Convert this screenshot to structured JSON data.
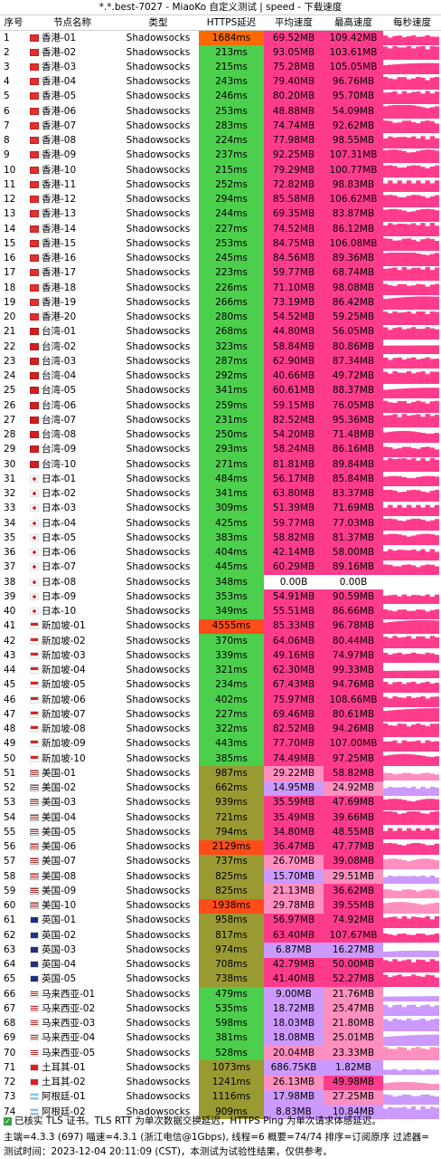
{
  "window_title": "*.*.best-7027 - MiaoKo 自定义测试 | speed - 下载速度",
  "headers": [
    "序号",
    "节点名称",
    "类型",
    "HTTPS延迟",
    "平均速度",
    "最高速度",
    "每秒速度"
  ],
  "rows": [
    [
      "1",
      "hk",
      "香港-01",
      "Shadowsocks",
      "1684ms",
      "69.52MB",
      "109.42MB"
    ],
    [
      "2",
      "hk",
      "香港-02",
      "Shadowsocks",
      "213ms",
      "93.05MB",
      "103.61MB"
    ],
    [
      "3",
      "hk",
      "香港-03",
      "Shadowsocks",
      "215ms",
      "75.28MB",
      "105.05MB"
    ],
    [
      "4",
      "hk",
      "香港-04",
      "Shadowsocks",
      "243ms",
      "79.40MB",
      "96.76MB"
    ],
    [
      "5",
      "hk",
      "香港-05",
      "Shadowsocks",
      "246ms",
      "80.20MB",
      "95.70MB"
    ],
    [
      "6",
      "hk",
      "香港-06",
      "Shadowsocks",
      "253ms",
      "48.88MB",
      "54.09MB"
    ],
    [
      "7",
      "hk",
      "香港-07",
      "Shadowsocks",
      "283ms",
      "74.74MB",
      "92.62MB"
    ],
    [
      "8",
      "hk",
      "香港-08",
      "Shadowsocks",
      "224ms",
      "77.98MB",
      "98.55MB"
    ],
    [
      "9",
      "hk",
      "香港-09",
      "Shadowsocks",
      "237ms",
      "92.25MB",
      "107.31MB"
    ],
    [
      "10",
      "hk",
      "香港-10",
      "Shadowsocks",
      "215ms",
      "79.29MB",
      "100.77MB"
    ],
    [
      "11",
      "hk",
      "香港-11",
      "Shadowsocks",
      "252ms",
      "72.82MB",
      "98.83MB"
    ],
    [
      "12",
      "hk",
      "香港-12",
      "Shadowsocks",
      "294ms",
      "85.58MB",
      "106.62MB"
    ],
    [
      "13",
      "hk",
      "香港-13",
      "Shadowsocks",
      "244ms",
      "69.35MB",
      "83.87MB"
    ],
    [
      "14",
      "hk",
      "香港-14",
      "Shadowsocks",
      "227ms",
      "74.52MB",
      "86.12MB"
    ],
    [
      "15",
      "hk",
      "香港-15",
      "Shadowsocks",
      "253ms",
      "84.75MB",
      "106.08MB"
    ],
    [
      "16",
      "hk",
      "香港-16",
      "Shadowsocks",
      "245ms",
      "84.56MB",
      "89.36MB"
    ],
    [
      "17",
      "hk",
      "香港-17",
      "Shadowsocks",
      "223ms",
      "59.77MB",
      "68.74MB"
    ],
    [
      "18",
      "hk",
      "香港-18",
      "Shadowsocks",
      "226ms",
      "71.10MB",
      "98.08MB"
    ],
    [
      "19",
      "hk",
      "香港-19",
      "Shadowsocks",
      "266ms",
      "73.19MB",
      "86.42MB"
    ],
    [
      "20",
      "hk",
      "香港-20",
      "Shadowsocks",
      "280ms",
      "54.52MB",
      "59.25MB"
    ],
    [
      "21",
      "tw",
      "台湾-01",
      "Shadowsocks",
      "268ms",
      "44.80MB",
      "56.05MB"
    ],
    [
      "22",
      "tw",
      "台湾-02",
      "Shadowsocks",
      "323ms",
      "58.84MB",
      "80.86MB"
    ],
    [
      "23",
      "tw",
      "台湾-03",
      "Shadowsocks",
      "287ms",
      "62.90MB",
      "87.34MB"
    ],
    [
      "24",
      "tw",
      "台湾-04",
      "Shadowsocks",
      "292ms",
      "40.66MB",
      "49.72MB"
    ],
    [
      "25",
      "tw",
      "台湾-05",
      "Shadowsocks",
      "341ms",
      "60.61MB",
      "88.37MB"
    ],
    [
      "26",
      "tw",
      "台湾-06",
      "Shadowsocks",
      "259ms",
      "59.15MB",
      "76.05MB"
    ],
    [
      "27",
      "tw",
      "台湾-07",
      "Shadowsocks",
      "231ms",
      "82.52MB",
      "95.36MB"
    ],
    [
      "28",
      "tw",
      "台湾-08",
      "Shadowsocks",
      "250ms",
      "54.20MB",
      "71.48MB"
    ],
    [
      "29",
      "tw",
      "台湾-09",
      "Shadowsocks",
      "293ms",
      "58.24MB",
      "86.16MB"
    ],
    [
      "30",
      "tw",
      "台湾-10",
      "Shadowsocks",
      "271ms",
      "81.81MB",
      "89.84MB"
    ],
    [
      "31",
      "jp",
      "日本-01",
      "Shadowsocks",
      "484ms",
      "56.17MB",
      "85.84MB"
    ],
    [
      "32",
      "jp",
      "日本-02",
      "Shadowsocks",
      "341ms",
      "63.80MB",
      "83.37MB"
    ],
    [
      "33",
      "jp",
      "日本-03",
      "Shadowsocks",
      "309ms",
      "51.39MB",
      "71.69MB"
    ],
    [
      "34",
      "jp",
      "日本-04",
      "Shadowsocks",
      "425ms",
      "59.77MB",
      "77.03MB"
    ],
    [
      "35",
      "jp",
      "日本-05",
      "Shadowsocks",
      "383ms",
      "58.82MB",
      "81.37MB"
    ],
    [
      "36",
      "jp",
      "日本-06",
      "Shadowsocks",
      "404ms",
      "42.14MB",
      "58.00MB"
    ],
    [
      "37",
      "jp",
      "日本-07",
      "Shadowsocks",
      "445ms",
      "60.29MB",
      "89.16MB"
    ],
    [
      "38",
      "jp",
      "日本-08",
      "Shadowsocks",
      "348ms",
      "0.00B",
      "0.00B"
    ],
    [
      "39",
      "jp",
      "日本-09",
      "Shadowsocks",
      "353ms",
      "54.91MB",
      "90.59MB"
    ],
    [
      "40",
      "jp",
      "日本-10",
      "Shadowsocks",
      "349ms",
      "55.51MB",
      "86.66MB"
    ],
    [
      "41",
      "sg",
      "新加坡-01",
      "Shadowsocks",
      "4555ms",
      "85.33MB",
      "96.78MB"
    ],
    [
      "42",
      "sg",
      "新加坡-02",
      "Shadowsocks",
      "370ms",
      "64.06MB",
      "80.44MB"
    ],
    [
      "43",
      "sg",
      "新加坡-03",
      "Shadowsocks",
      "339ms",
      "49.16MB",
      "74.97MB"
    ],
    [
      "44",
      "sg",
      "新加坡-04",
      "Shadowsocks",
      "321ms",
      "62.30MB",
      "99.33MB"
    ],
    [
      "45",
      "sg",
      "新加坡-05",
      "Shadowsocks",
      "234ms",
      "67.43MB",
      "94.76MB"
    ],
    [
      "46",
      "sg",
      "新加坡-06",
      "Shadowsocks",
      "402ms",
      "75.97MB",
      "108.66MB"
    ],
    [
      "47",
      "sg",
      "新加坡-07",
      "Shadowsocks",
      "227ms",
      "69.46MB",
      "80.61MB"
    ],
    [
      "48",
      "sg",
      "新加坡-08",
      "Shadowsocks",
      "322ms",
      "82.52MB",
      "94.26MB"
    ],
    [
      "49",
      "sg",
      "新加坡-09",
      "Shadowsocks",
      "443ms",
      "77.70MB",
      "107.00MB"
    ],
    [
      "50",
      "sg",
      "新加坡-10",
      "Shadowsocks",
      "385ms",
      "74.49MB",
      "97.25MB"
    ],
    [
      "51",
      "us",
      "美国-01",
      "Shadowsocks",
      "987ms",
      "29.22MB",
      "58.82MB"
    ],
    [
      "52",
      "us",
      "美国-02",
      "Shadowsocks",
      "662ms",
      "14.95MB",
      "24.92MB"
    ],
    [
      "53",
      "us",
      "美国-03",
      "Shadowsocks",
      "939ms",
      "35.59MB",
      "47.69MB"
    ],
    [
      "54",
      "us",
      "美国-04",
      "Shadowsocks",
      "721ms",
      "35.49MB",
      "39.66MB"
    ],
    [
      "55",
      "us",
      "美国-05",
      "Shadowsocks",
      "794ms",
      "34.80MB",
      "48.55MB"
    ],
    [
      "56",
      "us",
      "美国-06",
      "Shadowsocks",
      "2129ms",
      "36.47MB",
      "47.77MB"
    ],
    [
      "57",
      "us",
      "美国-07",
      "Shadowsocks",
      "737ms",
      "26.70MB",
      "39.08MB"
    ],
    [
      "58",
      "us",
      "美国-08",
      "Shadowsocks",
      "825ms",
      "15.70MB",
      "29.51MB"
    ],
    [
      "59",
      "us",
      "美国-09",
      "Shadowsocks",
      "825ms",
      "21.13MB",
      "36.62MB"
    ],
    [
      "60",
      "us",
      "美国-10",
      "Shadowsocks",
      "1938ms",
      "29.78MB",
      "39.55MB"
    ],
    [
      "61",
      "uk",
      "英国-01",
      "Shadowsocks",
      "958ms",
      "56.97MB",
      "74.92MB"
    ],
    [
      "62",
      "uk",
      "英国-02",
      "Shadowsocks",
      "817ms",
      "63.40MB",
      "107.67MB"
    ],
    [
      "63",
      "uk",
      "英国-03",
      "Shadowsocks",
      "974ms",
      "6.87MB",
      "16.27MB"
    ],
    [
      "64",
      "uk",
      "英国-04",
      "Shadowsocks",
      "708ms",
      "42.79MB",
      "50.00MB"
    ],
    [
      "65",
      "uk",
      "英国-05",
      "Shadowsocks",
      "738ms",
      "41.40MB",
      "52.27MB"
    ],
    [
      "66",
      "my",
      "马来西亚-01",
      "Shadowsocks",
      "479ms",
      "9.00MB",
      "21.76MB"
    ],
    [
      "67",
      "my",
      "马来西亚-02",
      "Shadowsocks",
      "535ms",
      "18.72MB",
      "25.47MB"
    ],
    [
      "68",
      "my",
      "马来西亚-03",
      "Shadowsocks",
      "598ms",
      "18.03MB",
      "21.80MB"
    ],
    [
      "69",
      "my",
      "马来西亚-04",
      "Shadowsocks",
      "381ms",
      "18.08MB",
      "25.01MB"
    ],
    [
      "70",
      "my",
      "马来西亚-05",
      "Shadowsocks",
      "528ms",
      "20.04MB",
      "23.33MB"
    ],
    [
      "71",
      "tr",
      "土耳其-01",
      "Shadowsocks",
      "1073ms",
      "686.75KB",
      "1.82MB"
    ],
    [
      "72",
      "tr",
      "土耳其-02",
      "Shadowsocks",
      "1241ms",
      "26.13MB",
      "49.98MB"
    ],
    [
      "73",
      "ar",
      "阿根廷-01",
      "Shadowsocks",
      "1116ms",
      "17.98MB",
      "27.25MB"
    ],
    [
      "74",
      "ar",
      "阿根廷-02",
      "Shadowsocks",
      "909ms",
      "8.83MB",
      "10.84MB"
    ]
  ],
  "footer": {
    "line1": "已核实 TLS 证书。TLS RTT 为单次数据交换延迟，HTTPS Ping 为单次请求体感延迟。",
    "line2": "主端=4.3.3 (697) 喵速=4.3.1 (浙江电信@1Gbps), 线程=6 概要=74/74 排序=订阅原序 过滤器=",
    "line3": "测试时间：2023-12-04 20:11:09 (CST)，本测试为试验性结果，仅供参考。"
  },
  "colors": {
    "latency_green": "#4ccf4c",
    "latency_orange": "#ff6a00",
    "latency_olive": "#9a9a33",
    "latency_red": "#ff4d1a",
    "speed_pink": "#ff3c8c",
    "speed_light_pink": "#ff8fbf",
    "speed_purple": "#cc99ff",
    "empty": "#ffffff"
  }
}
